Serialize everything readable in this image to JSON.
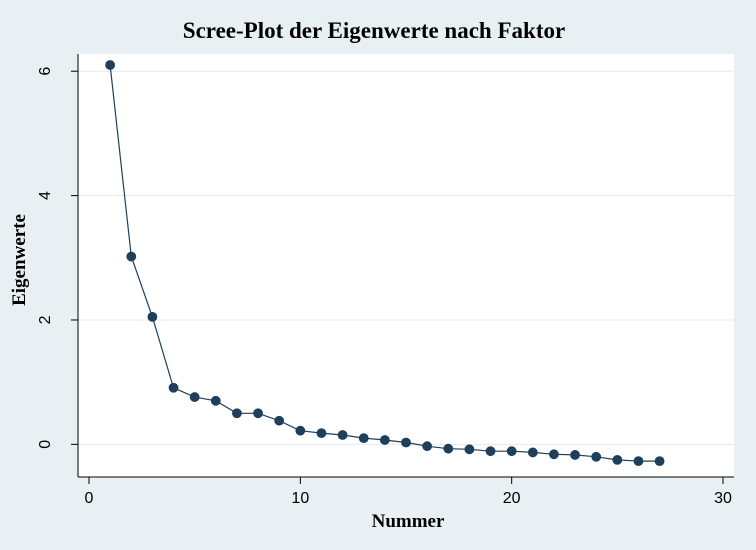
{
  "chart_data": {
    "type": "line",
    "title": "Scree-Plot der Eigenwerte nach Faktor",
    "xlabel": "Nummer",
    "ylabel": "Eigenwerte",
    "xlim": [
      0,
      30
    ],
    "ylim": [
      -0.3,
      6.1
    ],
    "xticks": [
      0,
      10,
      20,
      30
    ],
    "yticks": [
      0,
      2,
      4,
      6
    ],
    "grid": true,
    "markers": true,
    "colors": {
      "series": "#1f3f5b",
      "plot_background": "#ffffff",
      "page_background": "#e9f0f4"
    },
    "series": [
      {
        "x": [
          1,
          2,
          3,
          4,
          5,
          6,
          7,
          8,
          9,
          10,
          11,
          12,
          13,
          14,
          15,
          16,
          17,
          18,
          19,
          20,
          21,
          22,
          23,
          24,
          25,
          26,
          27
        ],
        "values": [
          6.1,
          3.02,
          2.05,
          0.91,
          0.76,
          0.7,
          0.5,
          0.5,
          0.38,
          0.22,
          0.18,
          0.15,
          0.1,
          0.07,
          0.03,
          -0.03,
          -0.07,
          -0.08,
          -0.11,
          -0.11,
          -0.13,
          -0.16,
          -0.17,
          -0.2,
          -0.25,
          -0.27,
          -0.27
        ]
      }
    ]
  }
}
